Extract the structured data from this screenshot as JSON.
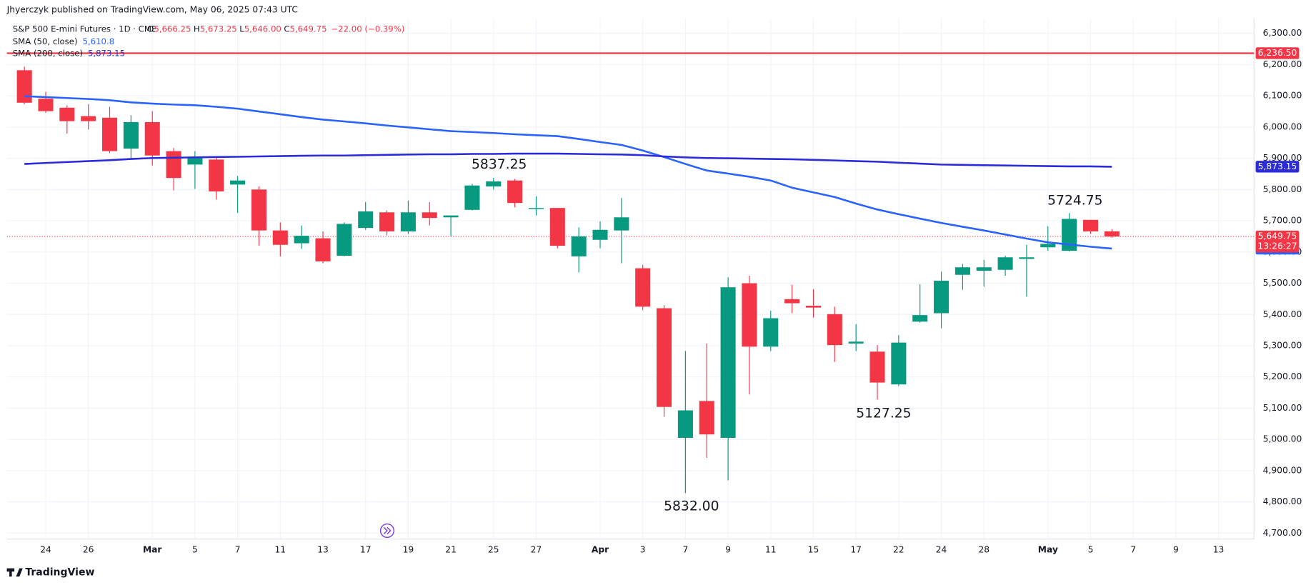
{
  "chart_data": {
    "type": "candlestick",
    "published": "Jhyerczyk published on TradingView.com, May 06, 2025 07:43 UTC",
    "legend": {
      "symbol": "S&P 500 E-mini Futures · 1D · CME",
      "ohlc": [
        {
          "key": "O",
          "value": "5,666.25"
        },
        {
          "key": "H",
          "value": "5,673.25"
        },
        {
          "key": "L",
          "value": "5,646.00"
        },
        {
          "key": "C",
          "value": "5,649.75"
        }
      ],
      "change": "−22.00 (−0.39%)"
    },
    "brand": "TradingView",
    "categories": [
      null,
      "24",
      null,
      "26",
      null,
      null,
      "Mar",
      null,
      "5",
      null,
      "7",
      null,
      "11",
      null,
      "13",
      null,
      "17",
      null,
      "19",
      null,
      "21",
      null,
      "25",
      null,
      "27",
      null,
      null,
      "Apr",
      null,
      "3",
      null,
      "7",
      null,
      "9",
      null,
      "11",
      null,
      "15",
      null,
      "17",
      null,
      "22",
      null,
      "24",
      null,
      "28",
      null,
      null,
      "May",
      null,
      "5",
      null,
      "7",
      null,
      "9",
      null,
      "13"
    ],
    "open": [
      6182,
      6091,
      6062,
      6035,
      6030,
      5931,
      6016,
      5923,
      5880,
      5896,
      5816,
      5800,
      5669,
      5628,
      5644,
      5588,
      5677,
      5727,
      5666,
      5727,
      5711,
      5735,
      5810,
      5829,
      5738,
      5741,
      5586,
      5639,
      5669,
      5548,
      5420,
      5005,
      5123,
      5005,
      5500,
      5297,
      5449,
      5428,
      5401,
      5307,
      5281,
      5176,
      5377,
      5404,
      5527,
      5540,
      5543,
      5578,
      5615,
      5604,
      5703,
      5666.25,
      null,
      null,
      null,
      null,
      null
    ],
    "high": [
      6193,
      6113,
      6070,
      6073,
      6065,
      6038,
      6051,
      5933,
      5923,
      5904,
      5843,
      5810,
      5695,
      5685,
      5666,
      5695,
      5760,
      5733,
      5765,
      5760,
      5717,
      5818,
      5837.25,
      5834,
      5778,
      5741,
      5679,
      5698,
      5773,
      5559,
      5430,
      5283,
      5307,
      5519,
      5524,
      5412,
      5495,
      5481,
      5425,
      5369,
      5302,
      5334,
      5497,
      5537,
      5562,
      5575,
      5588,
      5623,
      5682,
      5724.75,
      5703,
      5673.25,
      null,
      null,
      null,
      null,
      null
    ],
    "low": [
      6073,
      6046,
      5979,
      5992,
      5917,
      5899,
      5877,
      5797,
      5802,
      5768,
      5725,
      5620,
      5586,
      5610,
      5564,
      5586,
      5671,
      5653,
      5658,
      5685,
      5650,
      5733,
      5800,
      5743,
      5717,
      5612,
      5535,
      5612,
      5564,
      5414,
      5072,
      4828,
      4941,
      4869,
      5144,
      5283,
      5404,
      5390,
      5248,
      5283,
      5127.25,
      5171,
      5374,
      5356,
      5479,
      5489,
      5524,
      5457,
      5604,
      5602,
      5658,
      5646,
      null,
      null,
      null,
      null,
      null
    ],
    "close": [
      6078,
      6051,
      6019,
      6019,
      5923,
      6016,
      5909,
      5837,
      5904,
      5794,
      5829,
      5669,
      5623,
      5652,
      5570,
      5690,
      5730,
      5666,
      5727,
      5709,
      5717,
      5813,
      5826,
      5757,
      5741,
      5620,
      5650,
      5671,
      5711,
      5425,
      5104,
      5093,
      5016,
      5487,
      5297,
      5388,
      5436,
      5422,
      5302,
      5313,
      5182,
      5310,
      5398,
      5508,
      5551,
      5551,
      5583,
      5583,
      5626,
      5706,
      5666,
      5649.75,
      null,
      null,
      null,
      null,
      null
    ],
    "up_color": "#089981",
    "down_color": "#f23645",
    "series": [
      {
        "name": "SMA (50, close)",
        "color": "#2962ff",
        "value_label": "5,610.8",
        "values": [
          6099,
          6096,
          6093,
          6090,
          6086,
          6079,
          6075,
          6072,
          6070,
          6065,
          6059,
          6050,
          6041,
          6032,
          6024,
          6018,
          6012,
          6005,
          5999,
          5993,
          5987,
          5984,
          5981,
          5977,
          5974,
          5971,
          5962,
          5952,
          5943,
          5925,
          5904,
          5882,
          5861,
          5851,
          5841,
          5829,
          5806,
          5791,
          5776,
          5755,
          5736,
          5721,
          5707,
          5693,
          5681,
          5669,
          5656,
          5643,
          5631,
          5624,
          5617,
          5610.8,
          null,
          null,
          null,
          null,
          null
        ]
      },
      {
        "name": "SMA (200, close)",
        "color": "#2b2bd9",
        "value_label": "5,873.15",
        "values": [
          5882,
          5885,
          5888,
          5891,
          5894,
          5898,
          5901,
          5902,
          5903,
          5904,
          5905,
          5906,
          5907,
          5908,
          5909,
          5909,
          5910,
          5911,
          5912,
          5913,
          5913,
          5914,
          5914,
          5915,
          5915,
          5915,
          5914,
          5913,
          5912,
          5910,
          5906,
          5903,
          5901,
          5900,
          5899,
          5898,
          5897,
          5895,
          5893,
          5891,
          5889,
          5886,
          5883,
          5880,
          5879,
          5878,
          5877,
          5876,
          5875,
          5874,
          5874,
          5873.15,
          null,
          null,
          null,
          null,
          null
        ]
      }
    ],
    "hlines": [
      {
        "value": 6236.5,
        "label": "6,236.50",
        "color": "#f23645"
      }
    ],
    "price_line": {
      "value": 5649.75,
      "label": "5,649.75",
      "countdown": "13:26:27",
      "color": "#f23645"
    },
    "annotations": [
      "5837.25",
      "5724.75",
      "5127.25",
      "5832.00"
    ],
    "ylim": [
      4681,
      6348
    ],
    "yticks": [
      {
        "value": 4700,
        "label": "4,700.00"
      },
      {
        "value": 4800,
        "label": "4,800.00"
      },
      {
        "value": 4900,
        "label": "4,900.00"
      },
      {
        "value": 5000,
        "label": "5,000.00"
      },
      {
        "value": 5100,
        "label": "5,100.00"
      },
      {
        "value": 5200,
        "label": "5,200.00"
      },
      {
        "value": 5300,
        "label": "5,300.00"
      },
      {
        "value": 5400,
        "label": "5,400.00"
      },
      {
        "value": 5500,
        "label": "5,500.00"
      },
      {
        "value": 5600,
        "label": "5,600.00"
      },
      {
        "value": 5700,
        "label": "5,700.00"
      },
      {
        "value": 5800,
        "label": "5,800.00"
      },
      {
        "value": 5900,
        "label": "5,900.00"
      },
      {
        "value": 6000,
        "label": "6,000.00"
      },
      {
        "value": 6100,
        "label": "6,100.00"
      },
      {
        "value": 6200,
        "label": "6,200.00"
      },
      {
        "value": 6300,
        "label": "6,300.00"
      }
    ],
    "grid": true
  }
}
